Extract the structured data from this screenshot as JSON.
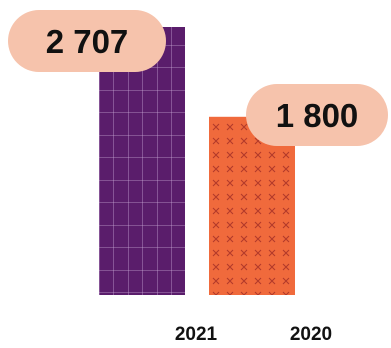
{
  "chart_data": {
    "type": "bar",
    "categories": [
      "2021",
      "2020"
    ],
    "values": [
      2707,
      1800
    ],
    "value_labels": [
      "2 707",
      "1 800"
    ],
    "title": "",
    "xlabel": "",
    "ylabel": "",
    "ylim": [
      0,
      2707
    ],
    "grid": false,
    "legend": "none",
    "colors": {
      "bar_2021": "#5a1d6b",
      "bar_2021_pattern": "#c9a8d6",
      "bar_2020": "#f06a3c",
      "bar_2020_pattern": "#b23a2a",
      "label_bubble": "#f6c3ac"
    }
  }
}
